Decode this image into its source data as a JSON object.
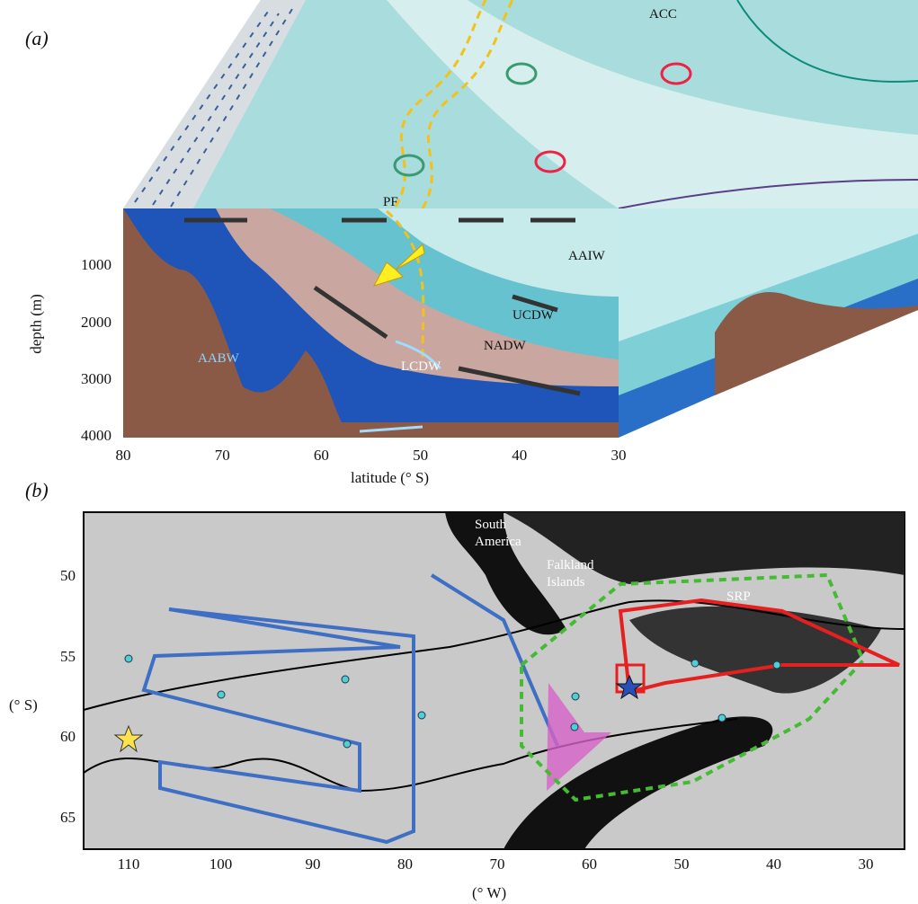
{
  "panel_a": {
    "label": "(a)",
    "annotations": {
      "acc": "ACC",
      "pf": "PF",
      "aaiw": "AAIW",
      "ucdw": "UCDW",
      "lcdw": "LCDW",
      "nadw": "NADW",
      "aabw": "AABW"
    },
    "y_axis": {
      "label": "depth (m)",
      "ticks": [
        1000,
        2000,
        3000,
        4000
      ]
    },
    "x_axis": {
      "label": "latitude (° S)",
      "ticks": [
        80,
        70,
        60,
        50,
        40,
        30
      ]
    }
  },
  "panel_b": {
    "label": "(b)",
    "annotations": {
      "south_america": "South America",
      "falkland": "Falkland Islands",
      "srp": "SRP"
    },
    "y_axis": {
      "label": "(° S)",
      "ticks": [
        50,
        55,
        60,
        65
      ]
    },
    "x_axis": {
      "label": "(° W)",
      "ticks": [
        110,
        100,
        90,
        80,
        70,
        60,
        50,
        40,
        30
      ]
    }
  }
}
